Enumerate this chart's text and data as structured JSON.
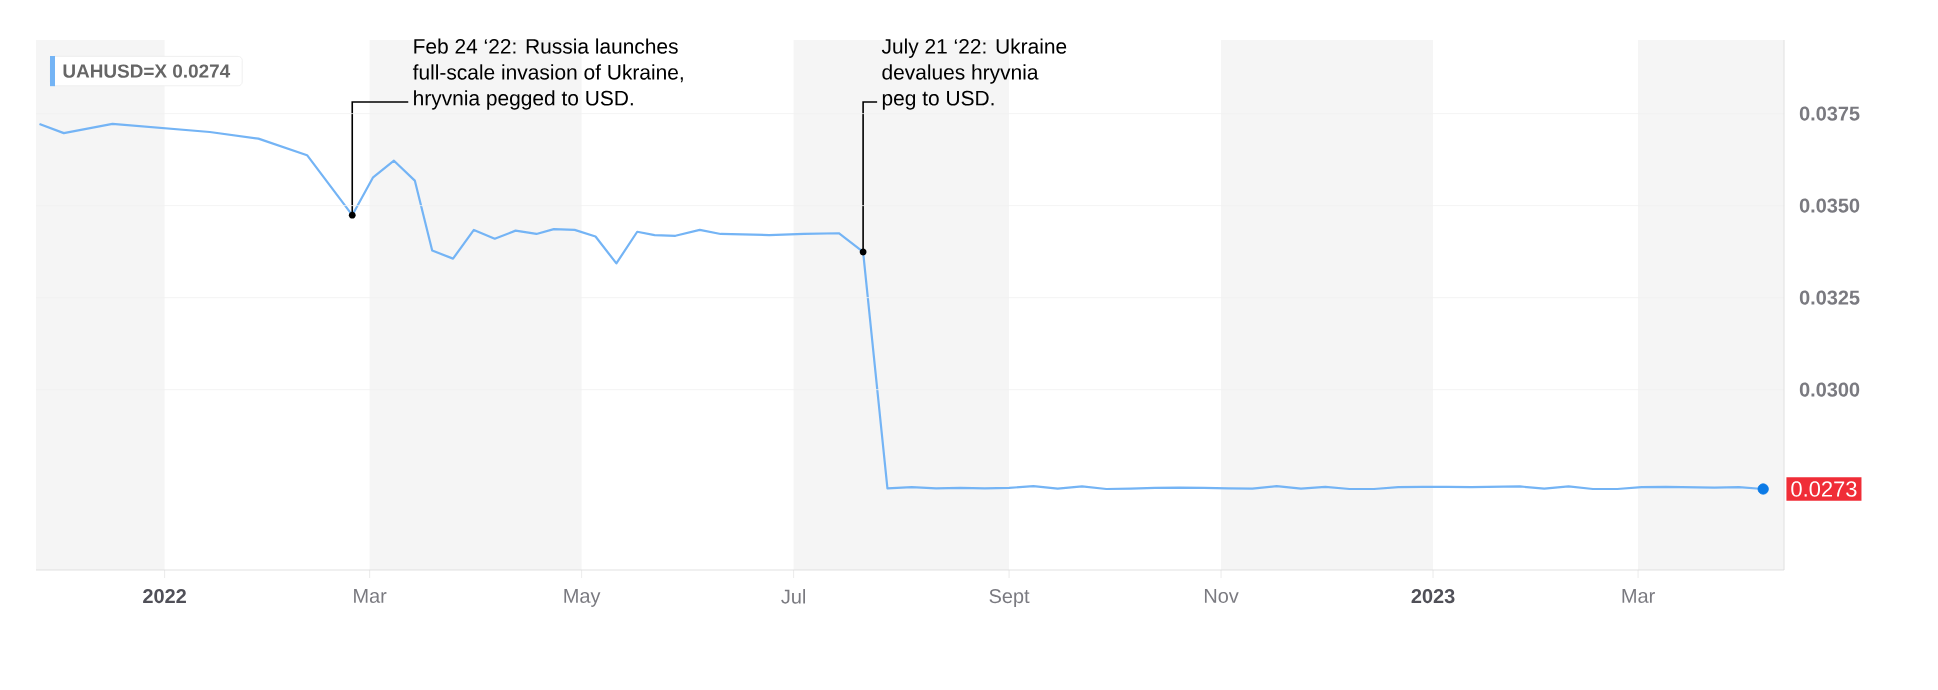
{
  "chart_data": {
    "type": "line",
    "xlim": [
      "2021-11-25",
      "2023-04-12"
    ],
    "xticks": [
      {
        "value": "2022-01-01",
        "label": "2022"
      },
      {
        "value": "2022-03-01",
        "label": "Mar"
      },
      {
        "value": "2022-05-01",
        "label": "May"
      },
      {
        "value": "2022-07-01",
        "label": "Jul"
      },
      {
        "value": "2022-09-01",
        "label": "Sept"
      },
      {
        "value": "2022-11-01",
        "label": "Nov"
      },
      {
        "value": "2023-01-01",
        "label": "2023"
      },
      {
        "value": "2023-03-01",
        "label": "Mar"
      }
    ],
    "ylim": [
      0.0251,
      0.0395
    ],
    "yticks": [
      {
        "value": 0.03,
        "label": "0.0300"
      },
      0.0325,
      {
        "value": 0.035,
        "label": "0.0350"
      },
      0.0375
    ],
    "grid": "y",
    "legend": "top left",
    "bands": [
      {
        "axis": "x",
        "from": "2021-11-25",
        "to": "2022-01-01",
        "color": "#f5f5f5"
      },
      {
        "axis": "x",
        "from": "2022-03-01",
        "to": "2022-05-01",
        "color": "#f5f5f5"
      },
      {
        "axis": "x",
        "from": "2022-07-01",
        "to": "2022-09-01",
        "color": "#f5f5f5"
      },
      {
        "axis": "x",
        "from": "2022-11-01",
        "to": "2023-01-01",
        "color": "#f5f5f5"
      },
      {
        "axis": "x",
        "from": "2023-03-01",
        "to": "2023-04-12",
        "color": "#f5f5f5"
      }
    ],
    "annotations": [
      {
        "text": "Feb 24 ‘22: Russia launches full-scale invasion of Ukraine, hryvnia pegged to USD.",
        "x": "2022-02-24",
        "y": 0.03474
      },
      {
        "text": "July 21 ‘22: Ukraine devalues hryvnia peg to USD.",
        "x": "2022-07-21",
        "y": 0.03374
      }
    ],
    "series": [
      {
        "name": "UAHUSD=X 0.0274",
        "type": "line",
        "color": "#74b4f5",
        "x": [
          "2021-11-26",
          "2021-12-03",
          "2021-12-17",
          "2022-01-14",
          "2022-01-28",
          "2022-02-11",
          "2022-02-24",
          "2022-03-02",
          "2022-03-08",
          "2022-03-14",
          "2022-03-19",
          "2022-03-25",
          "2022-03-31",
          "2022-04-06",
          "2022-04-12",
          "2022-04-18",
          "2022-04-23",
          "2022-04-29",
          "2022-05-05",
          "2022-05-11",
          "2022-05-17",
          "2022-05-22",
          "2022-05-28",
          "2022-06-04",
          "2022-06-10",
          "2022-06-24",
          "2022-07-04",
          "2022-07-14",
          "2022-07-21",
          "2022-07-28",
          "2022-08-04",
          "2022-08-11",
          "2022-08-18",
          "2022-08-25",
          "2022-09-01",
          "2022-09-08",
          "2022-09-15",
          "2022-09-22",
          "2022-09-29",
          "2022-10-06",
          "2022-10-13",
          "2022-10-20",
          "2022-10-27",
          "2022-11-03",
          "2022-11-10",
          "2022-11-17",
          "2022-11-24",
          "2022-12-01",
          "2022-12-08",
          "2022-12-15",
          "2022-12-22",
          "2022-12-29",
          "2023-01-05",
          "2023-01-12",
          "2023-01-19",
          "2023-01-26",
          "2023-02-02",
          "2023-02-09",
          "2023-02-16",
          "2023-02-23",
          "2023-03-02",
          "2023-03-09",
          "2023-03-16",
          "2023-03-23",
          "2023-03-30",
          "2023-04-06"
        ],
        "values": [
          0.03722,
          0.03697,
          0.03722,
          0.037,
          0.03682,
          0.03637,
          0.03474,
          0.03577,
          0.03622,
          0.03568,
          0.03378,
          0.03356,
          0.03434,
          0.0341,
          0.03432,
          0.03423,
          0.03436,
          0.03434,
          0.03416,
          0.03343,
          0.03429,
          0.0342,
          0.03418,
          0.03434,
          0.03423,
          0.0342,
          0.03423,
          0.03425,
          0.03374,
          0.02732,
          0.02735,
          0.02732,
          0.02733,
          0.02732,
          0.02733,
          0.02738,
          0.02731,
          0.02737,
          0.0273,
          0.02731,
          0.02733,
          0.02734,
          0.02733,
          0.02732,
          0.02731,
          0.02738,
          0.02731,
          0.02736,
          0.0273,
          0.0273,
          0.02735,
          0.02736,
          0.02736,
          0.02735,
          0.02736,
          0.02737,
          0.02731,
          0.02737,
          0.0273,
          0.0273,
          0.02735,
          0.02736,
          0.02735,
          0.02734,
          0.02735,
          0.0273
        ]
      },
      {
        "type": "scatter",
        "color": "#0b7ae6",
        "marker": "circle",
        "x": [
          "2023-04-06"
        ],
        "values": [
          0.0273
        ],
        "value_labels": [
          "0.0273"
        ]
      }
    ]
  }
}
